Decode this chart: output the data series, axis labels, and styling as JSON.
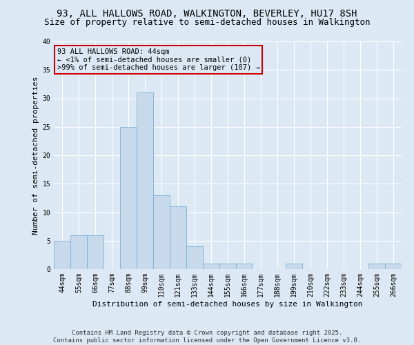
{
  "title_line1": "93, ALL HALLOWS ROAD, WALKINGTON, BEVERLEY, HU17 8SH",
  "title_line2": "Size of property relative to semi-detached houses in Walkington",
  "xlabel": "Distribution of semi-detached houses by size in Walkington",
  "ylabel": "Number of semi-detached properties",
  "categories": [
    "44sqm",
    "55sqm",
    "66sqm",
    "77sqm",
    "88sqm",
    "99sqm",
    "110sqm",
    "121sqm",
    "133sqm",
    "144sqm",
    "155sqm",
    "166sqm",
    "177sqm",
    "188sqm",
    "199sqm",
    "210sqm",
    "222sqm",
    "233sqm",
    "244sqm",
    "255sqm",
    "266sqm"
  ],
  "values": [
    5,
    6,
    6,
    0,
    25,
    31,
    13,
    11,
    4,
    1,
    1,
    1,
    0,
    0,
    1,
    0,
    0,
    0,
    0,
    1,
    1
  ],
  "bar_color": "#c8d9ec",
  "bar_edge_color": "#7aafd4",
  "annotation_box_text": "93 ALL HALLOWS ROAD: 44sqm\n← <1% of semi-detached houses are smaller (0)\n>99% of semi-detached houses are larger (107) →",
  "annotation_box_color": "#dce9f5",
  "annotation_box_edge_color": "#cc0000",
  "ylim": [
    0,
    40
  ],
  "yticks": [
    0,
    5,
    10,
    15,
    20,
    25,
    30,
    35,
    40
  ],
  "background_color": "#dce9f5",
  "plot_bg_color": "#dce9f5",
  "grid_color": "#ffffff",
  "footnote": "Contains HM Land Registry data © Crown copyright and database right 2025.\nContains public sector information licensed under the Open Government Licence v3.0.",
  "title_fontsize": 10,
  "subtitle_fontsize": 9,
  "axis_label_fontsize": 8,
  "tick_fontsize": 7,
  "annotation_fontsize": 7.5,
  "footnote_fontsize": 6.5
}
